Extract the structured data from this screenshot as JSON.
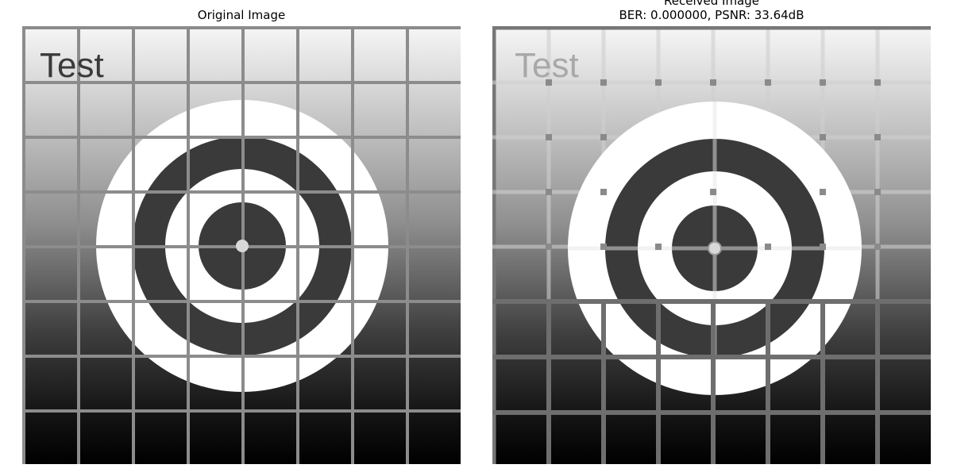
{
  "panels": [
    {
      "title": "Original Image",
      "overlay_text": "Test"
    },
    {
      "title_line1": "Received Image",
      "title_line2": "BER: 0.000000, PSNR: 33.64dB",
      "overlay_text": "Test"
    }
  ],
  "colors": {
    "background": "#ffffff",
    "grid_original": "#8c8c8c",
    "grid_received": "#7e7e7e",
    "ring_light": "#ffffff",
    "ring_dark": "#3a3a3a",
    "gradient_top": "#f4f4f4",
    "gradient_bottom": "#000000"
  }
}
